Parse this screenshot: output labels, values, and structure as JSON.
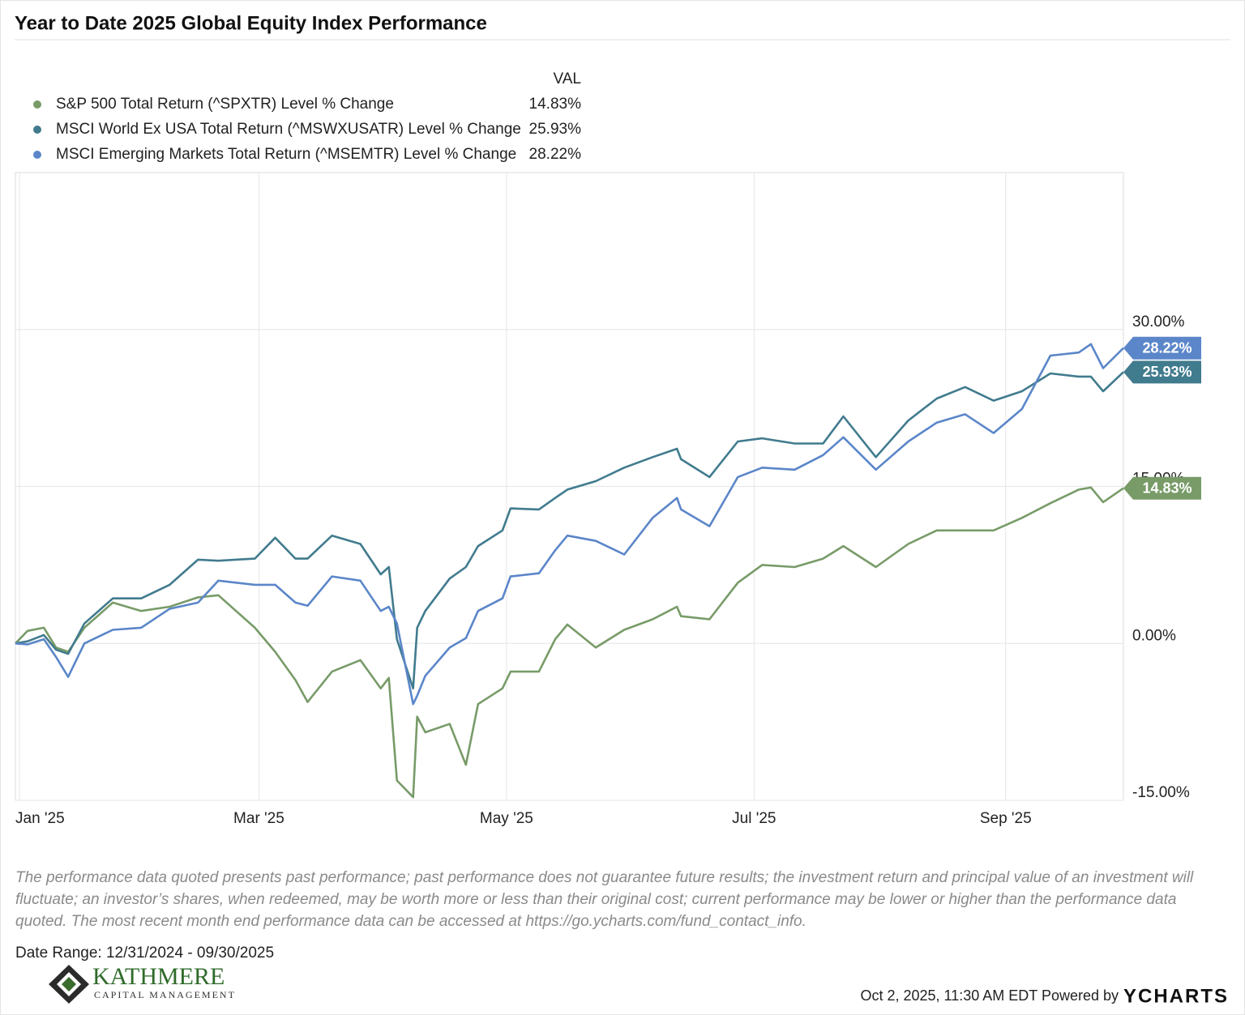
{
  "header": {
    "title": "Year to Date 2025 Global Equity Index Performance"
  },
  "chart_data": {
    "type": "line",
    "legend_value_header": "VAL",
    "x": [
      "2024-12-31",
      "2025-01-03",
      "2025-01-07",
      "2025-01-10",
      "2025-01-13",
      "2025-01-17",
      "2025-01-24",
      "2025-01-31",
      "2025-02-07",
      "2025-02-14",
      "2025-02-19",
      "2025-02-28",
      "2025-03-05",
      "2025-03-10",
      "2025-03-13",
      "2025-03-19",
      "2025-03-26",
      "2025-03-31",
      "2025-04-02",
      "2025-04-04",
      "2025-04-08",
      "2025-04-09",
      "2025-04-11",
      "2025-04-17",
      "2025-04-21",
      "2025-04-24",
      "2025-04-30",
      "2025-05-02",
      "2025-05-09",
      "2025-05-13",
      "2025-05-16",
      "2025-05-23",
      "2025-05-30",
      "2025-06-06",
      "2025-06-12",
      "2025-06-13",
      "2025-06-20",
      "2025-06-27",
      "2025-07-03",
      "2025-07-11",
      "2025-07-18",
      "2025-07-23",
      "2025-07-31",
      "2025-08-08",
      "2025-08-15",
      "2025-08-22",
      "2025-08-29",
      "2025-09-05",
      "2025-09-12",
      "2025-09-19",
      "2025-09-22",
      "2025-09-25",
      "2025-09-30"
    ],
    "series": [
      {
        "name": "S&P 500 Total Return (^SPXTR) Level % Change",
        "color": "#789b68",
        "values": [
          0,
          1.2,
          1.5,
          -0.4,
          -0.8,
          1.5,
          3.9,
          3.1,
          3.5,
          4.4,
          4.6,
          1.5,
          -0.8,
          -3.5,
          -5.6,
          -2.7,
          -1.6,
          -4.3,
          -3.3,
          -13.1,
          -14.7,
          -7.0,
          -8.5,
          -7.7,
          -11.6,
          -5.8,
          -4.3,
          -2.7,
          -2.7,
          0.4,
          1.8,
          -0.4,
          1.3,
          2.3,
          3.5,
          2.6,
          2.3,
          5.8,
          7.5,
          7.3,
          8.1,
          9.3,
          7.3,
          9.5,
          10.8,
          10.8,
          10.8,
          12.0,
          13.4,
          14.7,
          14.9,
          13.5,
          14.83
        ],
        "value_labels": [
          null,
          null,
          null,
          null,
          null,
          null,
          null,
          null,
          null,
          null,
          null,
          null,
          null,
          null,
          null,
          null,
          null,
          null,
          null,
          null,
          null,
          null,
          null,
          null,
          null,
          null,
          null,
          null,
          null,
          null,
          null,
          null,
          null,
          null,
          null,
          null,
          null,
          null,
          null,
          null,
          null,
          null,
          null,
          null,
          null,
          null,
          null,
          null,
          null,
          null,
          null,
          null,
          "14.83%"
        ]
      },
      {
        "name": "MSCI World Ex USA Total Return (^MSWXUSATR) Level % Change",
        "color": "#417b8e",
        "values": [
          0,
          0.2,
          0.8,
          -0.6,
          -1.0,
          1.9,
          4.3,
          4.3,
          5.6,
          8.0,
          7.9,
          8.1,
          10.1,
          8.1,
          8.1,
          10.3,
          9.5,
          6.6,
          7.3,
          0.4,
          -4.3,
          1.5,
          3.1,
          6.2,
          7.3,
          9.3,
          10.8,
          12.9,
          12.8,
          13.9,
          14.7,
          15.5,
          16.8,
          17.8,
          18.6,
          17.6,
          15.9,
          19.3,
          19.6,
          19.1,
          19.1,
          21.7,
          17.8,
          21.3,
          23.4,
          24.5,
          23.2,
          24.1,
          25.8,
          25.5,
          25.5,
          24.1,
          25.93
        ],
        "value_labels": [
          null,
          null,
          null,
          null,
          null,
          null,
          null,
          null,
          null,
          null,
          null,
          null,
          null,
          null,
          null,
          null,
          null,
          null,
          null,
          null,
          null,
          null,
          null,
          null,
          null,
          null,
          null,
          null,
          null,
          null,
          null,
          null,
          null,
          null,
          null,
          null,
          null,
          null,
          null,
          null,
          null,
          null,
          null,
          null,
          null,
          null,
          null,
          null,
          null,
          null,
          null,
          null,
          "25.93%"
        ]
      },
      {
        "name": "MSCI Emerging Markets Total Return (^MSEMTR) Level % Change",
        "color": "#5b86c9",
        "values": [
          0,
          -0.1,
          0.4,
          -1.3,
          -3.2,
          0,
          1.3,
          1.5,
          3.3,
          3.9,
          6.0,
          5.6,
          5.6,
          3.9,
          3.6,
          6.4,
          6.0,
          3.1,
          3.5,
          1.9,
          -5.8,
          -5.0,
          -3.1,
          -0.4,
          0.5,
          3.1,
          4.3,
          6.4,
          6.7,
          8.9,
          10.3,
          9.8,
          8.5,
          12.0,
          13.9,
          12.8,
          11.2,
          15.9,
          16.8,
          16.6,
          18.0,
          19.7,
          16.6,
          19.3,
          21.1,
          21.9,
          20.1,
          22.4,
          27.5,
          27.8,
          28.6,
          26.3,
          28.22
        ],
        "value_labels": [
          null,
          null,
          null,
          null,
          null,
          null,
          null,
          null,
          null,
          null,
          null,
          null,
          null,
          null,
          null,
          null,
          null,
          null,
          null,
          null,
          null,
          null,
          null,
          null,
          null,
          null,
          null,
          null,
          null,
          null,
          null,
          null,
          null,
          null,
          null,
          null,
          null,
          null,
          null,
          null,
          null,
          null,
          null,
          null,
          null,
          null,
          null,
          null,
          null,
          null,
          null,
          null,
          "28.22%"
        ]
      }
    ],
    "xlim": [
      "2024-12-31",
      "2025-09-30"
    ],
    "xticks": [
      {
        "value": "2025-01-01",
        "label": "Jan '25"
      },
      {
        "value": "2025-03-01",
        "label": "Mar '25"
      },
      {
        "value": "2025-05-01",
        "label": "May '25"
      },
      {
        "value": "2025-07-01",
        "label": "Jul '25"
      },
      {
        "value": "2025-09-01",
        "label": "Sep '25"
      }
    ],
    "ylim": [
      -15,
      45
    ],
    "yticks": [
      {
        "value": -15,
        "label": "-15.00%"
      },
      {
        "value": 0,
        "label": "0.00%"
      },
      {
        "value": 15,
        "label": "15.00%"
      },
      {
        "value": 30,
        "label": "30.00%"
      }
    ],
    "grid": true
  },
  "footer": {
    "disclaimer": "The performance data quoted presents past performance; past performance does not guarantee future results; the investment return and principal value of an investment will fluctuate; an investor’s shares, when redeemed, may be worth more or less than their original cost; current performance may be lower or higher than the performance data quoted. The most recent month end performance data can be accessed at https://go.ycharts.com/fund_contact_info.",
    "date_range": "Date Range: 12/31/2024 - 09/30/2025",
    "logo_name": "KATHMERE",
    "logo_sub": "CAPITAL MANAGEMENT",
    "timestamp": "Oct 2, 2025, 11:30 AM EDT Powered by",
    "brand": "YCHARTS"
  }
}
